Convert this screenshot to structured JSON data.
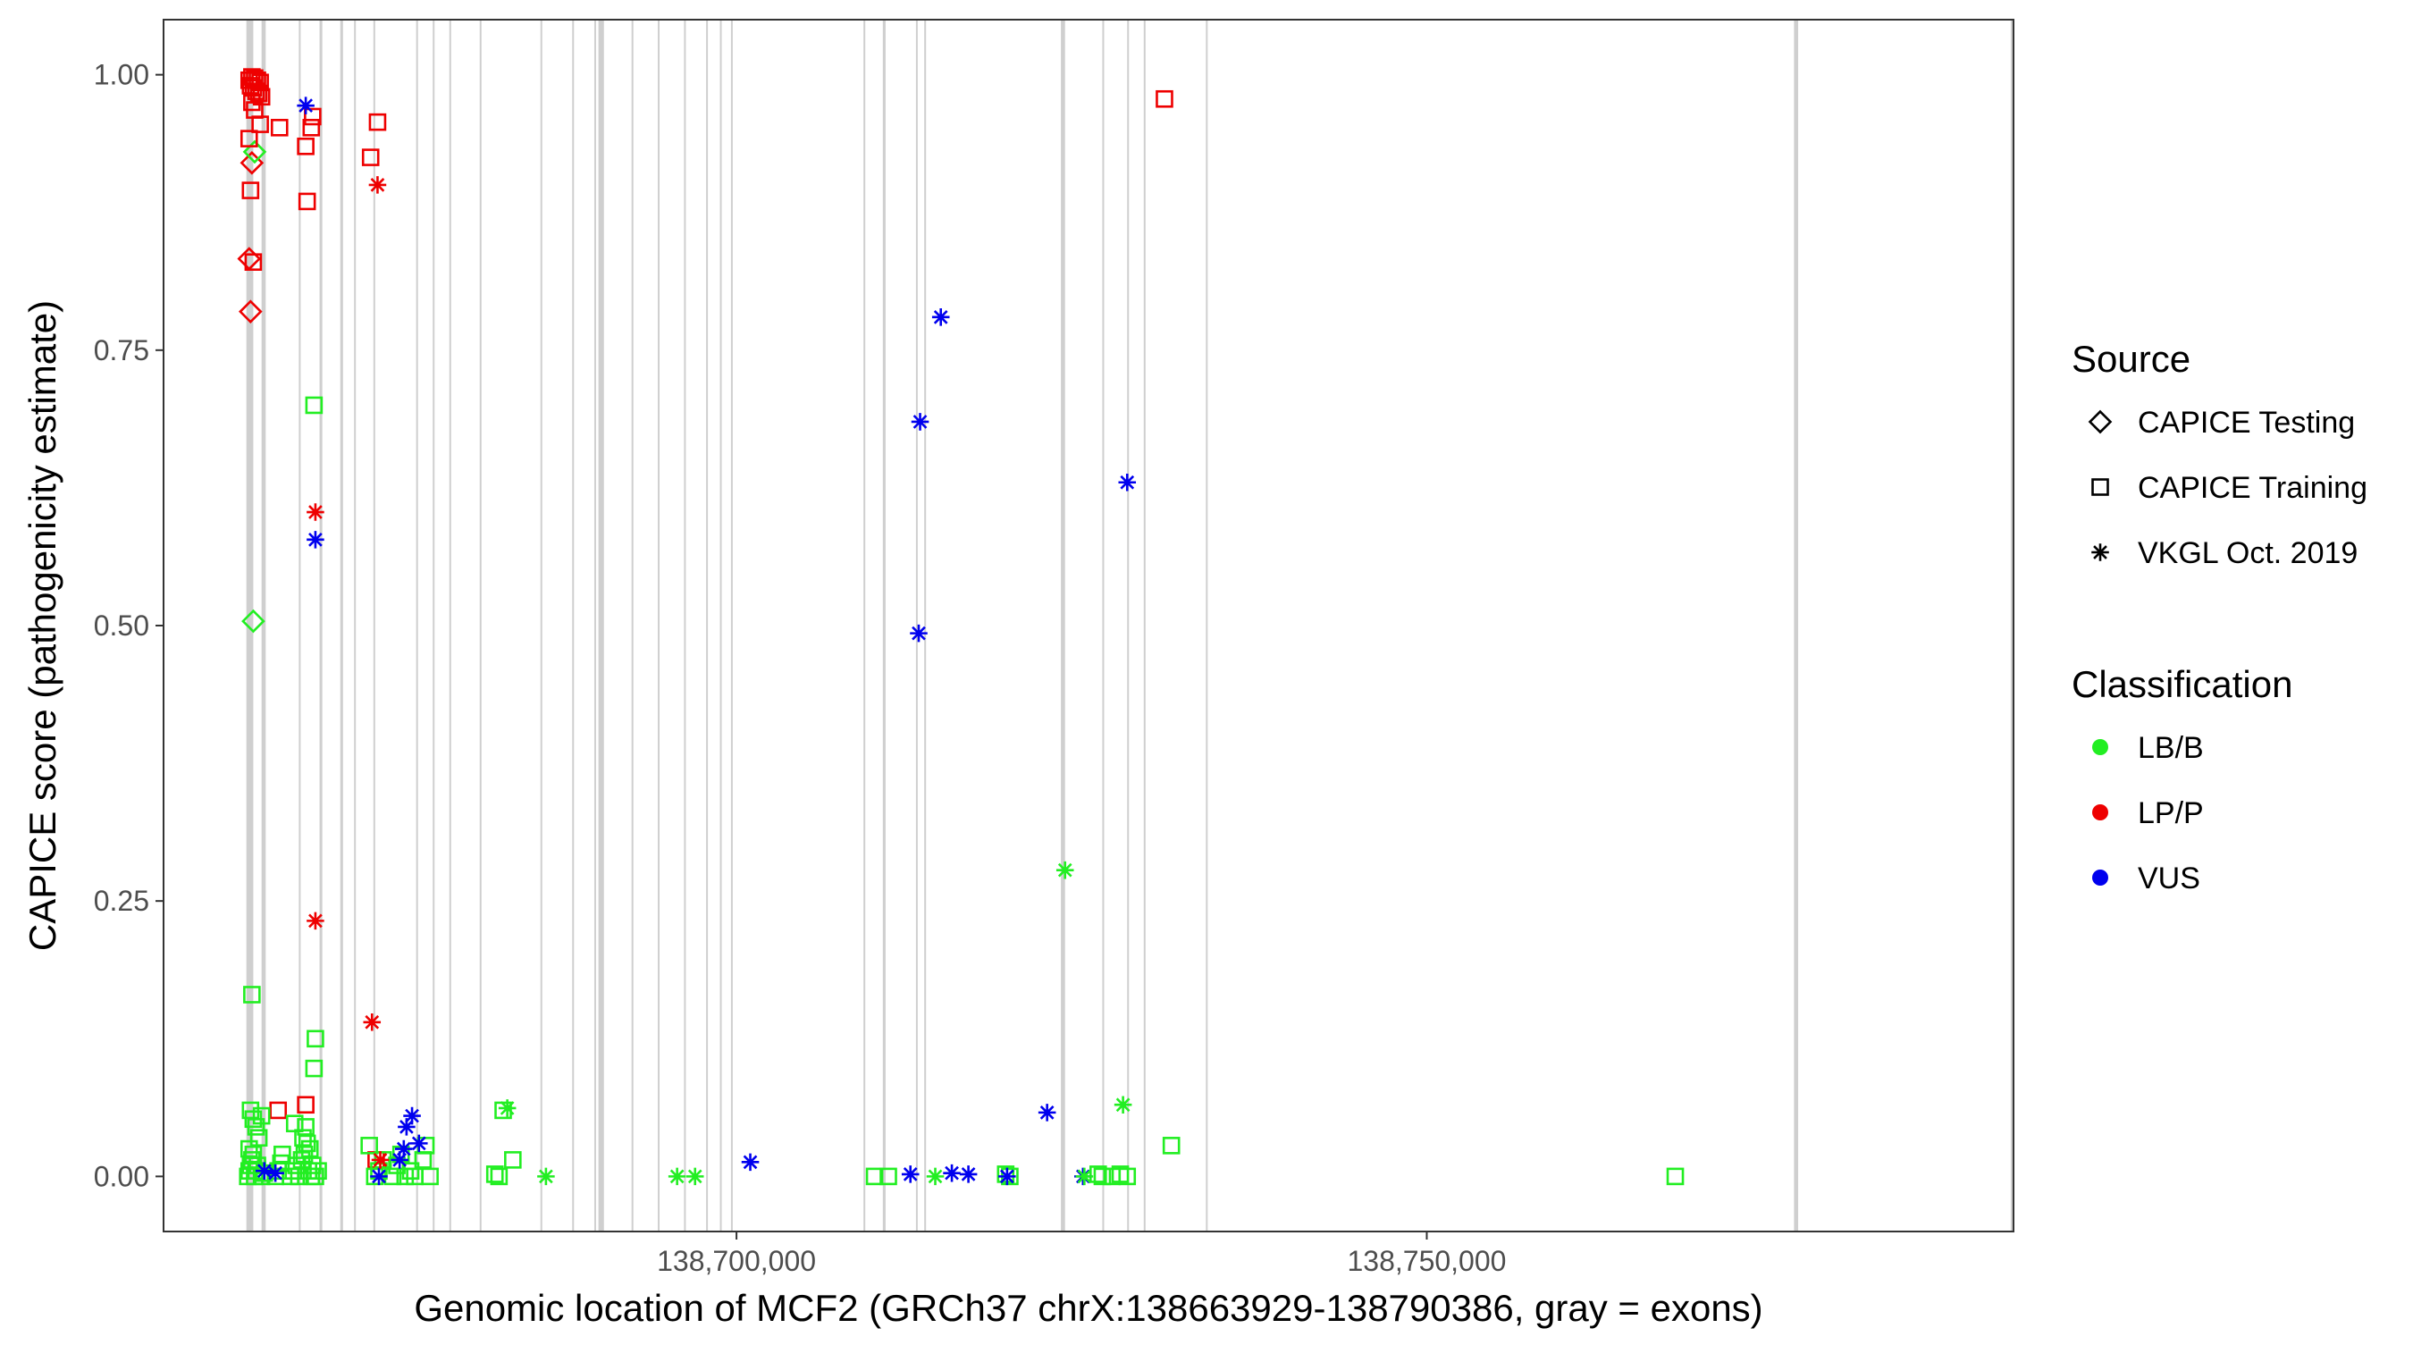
{
  "chart_data": {
    "type": "scatter",
    "title": "",
    "xlabel": "Genomic location of MCF2 (GRCh37 chrX:138663929-138790386, gray = exons)",
    "ylabel": "CAPICE score (pathogenicity estimate)",
    "xlim": [
      138658500,
      138792500
    ],
    "ylim": [
      -0.05,
      1.05
    ],
    "x_ticks": [
      138700000,
      138750000
    ],
    "x_tick_labels": [
      "138,700,000",
      "138,750,000"
    ],
    "y_ticks": [
      0,
      0.25,
      0.5,
      0.75,
      1.0
    ],
    "y_tick_labels": [
      "0.00",
      "0.25",
      "0.50",
      "0.75",
      "1.00"
    ],
    "grid": false,
    "legend_position": "right",
    "exon_lines": [
      [
        138664500,
        138665000
      ],
      [
        138665600,
        138665900
      ],
      [
        138668300,
        138668400
      ],
      [
        138669800,
        138670000
      ],
      [
        138671300,
        138671500
      ],
      [
        138672300,
        138672400
      ],
      [
        138673700,
        138673800
      ],
      [
        138676800,
        138676900
      ],
      [
        138678000,
        138678100
      ],
      [
        138679200,
        138679300
      ],
      [
        138681400,
        138681500
      ],
      [
        138685800,
        138685900
      ],
      [
        138688100,
        138688200
      ],
      [
        138689700,
        138689800
      ],
      [
        138690000,
        138690400
      ],
      [
        138692400,
        138692500
      ],
      [
        138694300,
        138694400
      ],
      [
        138696200,
        138696300
      ],
      [
        138697800,
        138697900
      ],
      [
        138698800,
        138698900
      ],
      [
        138699600,
        138699700
      ],
      [
        138709200,
        138709300
      ],
      [
        138710600,
        138710800
      ],
      [
        138713000,
        138713100
      ],
      [
        138713600,
        138713700
      ],
      [
        138723500,
        138723800
      ],
      [
        138726500,
        138726600
      ],
      [
        138728300,
        138728400
      ],
      [
        138729500,
        138729600
      ],
      [
        138734000,
        138734100
      ],
      [
        138776600,
        138776900
      ],
      [
        138792300,
        138792400
      ]
    ],
    "legends": {
      "source": {
        "title": "Source",
        "items": [
          {
            "label": "CAPICE Testing",
            "shape": "diamond"
          },
          {
            "label": "CAPICE Training",
            "shape": "square"
          },
          {
            "label": "VKGL Oct. 2019",
            "shape": "asterisk"
          }
        ]
      },
      "classification": {
        "title": "Classification",
        "items": [
          {
            "label": "LB/B",
            "color": "#22ee22"
          },
          {
            "label": "LP/P",
            "color": "#ee0000"
          },
          {
            "label": "VUS",
            "color": "#0000ee"
          }
        ]
      }
    },
    "series": [
      {
        "source": "CAPICE Testing",
        "shape": "diamond",
        "classification": "LP/P",
        "color": "#ee0000",
        "points": [
          [
            138664900,
            0.92
          ],
          [
            138664700,
            0.833
          ],
          [
            138664800,
            0.785
          ]
        ]
      },
      {
        "source": "CAPICE Testing",
        "shape": "diamond",
        "classification": "LB/B",
        "color": "#22ee22",
        "points": [
          [
            138665100,
            0.93
          ],
          [
            138665000,
            0.504
          ]
        ]
      },
      {
        "source": "CAPICE Training",
        "shape": "square",
        "classification": "LP/P",
        "color": "#ee0000",
        "points": [
          [
            138664700,
            0.995
          ],
          [
            138664900,
            0.998
          ],
          [
            138665100,
            0.997
          ],
          [
            138665300,
            0.995
          ],
          [
            138665500,
            0.993
          ],
          [
            138664800,
            0.99
          ],
          [
            138665000,
            0.988
          ],
          [
            138665200,
            0.985
          ],
          [
            138665400,
            0.983
          ],
          [
            138665600,
            0.98
          ],
          [
            138664900,
            0.975
          ],
          [
            138665100,
            0.968
          ],
          [
            138665500,
            0.955
          ],
          [
            138666900,
            0.952
          ],
          [
            138664700,
            0.942
          ],
          [
            138664800,
            0.895
          ],
          [
            138665000,
            0.83
          ],
          [
            138668800,
            0.935
          ],
          [
            138669300,
            0.962
          ],
          [
            138669200,
            0.952
          ],
          [
            138668900,
            0.885
          ],
          [
            138668800,
            0.065
          ],
          [
            138666800,
            0.06
          ],
          [
            138673500,
            0.925
          ],
          [
            138674000,
            0.957
          ],
          [
            138673900,
            0.015
          ],
          [
            138731000,
            0.978
          ]
        ]
      },
      {
        "source": "CAPICE Training",
        "shape": "square",
        "classification": "LB/B",
        "color": "#22ee22",
        "points": [
          [
            138664600,
            0.0
          ],
          [
            138664700,
            0.005
          ],
          [
            138664800,
            0.01
          ],
          [
            138664900,
            0.015
          ],
          [
            138665000,
            0.02
          ],
          [
            138665100,
            0.0
          ],
          [
            138665200,
            0.005
          ],
          [
            138665300,
            0.01
          ],
          [
            138665600,
            0.0
          ],
          [
            138665800,
            0.003
          ],
          [
            138664800,
            0.06
          ],
          [
            138665000,
            0.052
          ],
          [
            138665200,
            0.045
          ],
          [
            138665400,
            0.035
          ],
          [
            138664700,
            0.025
          ],
          [
            138665600,
            0.055
          ],
          [
            138664900,
            0.165
          ],
          [
            138666600,
            0.0
          ],
          [
            138666800,
            0.005
          ],
          [
            138667000,
            0.012
          ],
          [
            138667100,
            0.02
          ],
          [
            138667700,
            0.0
          ],
          [
            138667900,
            0.005
          ],
          [
            138668100,
            0.01
          ],
          [
            138668300,
            0.0
          ],
          [
            138668500,
            0.015
          ],
          [
            138668700,
            0.02
          ],
          [
            138668900,
            0.03
          ],
          [
            138669100,
            0.025
          ],
          [
            138669300,
            0.01
          ],
          [
            138669500,
            0.0
          ],
          [
            138669700,
            0.005
          ],
          [
            138668000,
            0.048
          ],
          [
            138668800,
            0.045
          ],
          [
            138668600,
            0.035
          ],
          [
            138669000,
            0.005
          ],
          [
            138669200,
            0.0
          ],
          [
            138669400,
            0.7
          ],
          [
            138669500,
            0.125
          ],
          [
            138669400,
            0.098
          ],
          [
            138673400,
            0.028
          ],
          [
            138673800,
            0.0
          ],
          [
            138674100,
            0.005
          ],
          [
            138674400,
            0.015
          ],
          [
            138675100,
            0.0
          ],
          [
            138675400,
            0.01
          ],
          [
            138675700,
            0.02
          ],
          [
            138676000,
            0.0
          ],
          [
            138676400,
            0.005
          ],
          [
            138676700,
            0.0
          ],
          [
            138677300,
            0.015
          ],
          [
            138677500,
            0.028
          ],
          [
            138677800,
            0.0
          ],
          [
            138682500,
            0.002
          ],
          [
            138682800,
            0.0
          ],
          [
            138683100,
            0.06
          ],
          [
            138683800,
            0.015
          ],
          [
            138710000,
            0.0
          ],
          [
            138711000,
            0.0
          ],
          [
            138719500,
            0.002
          ],
          [
            138719800,
            0.0
          ],
          [
            138726200,
            0.002
          ],
          [
            138726500,
            0.0
          ],
          [
            138727200,
            0.0
          ],
          [
            138727800,
            0.002
          ],
          [
            138728300,
            0.0
          ],
          [
            138731500,
            0.028
          ],
          [
            138768000,
            0.0
          ]
        ]
      },
      {
        "source": "VKGL Oct. 2019",
        "shape": "asterisk",
        "classification": "VUS",
        "color": "#0000ee",
        "points": [
          [
            138668800,
            0.972
          ],
          [
            138669500,
            0.578
          ],
          [
            138665800,
            0.005
          ],
          [
            138666600,
            0.003
          ],
          [
            138674100,
            0.0
          ],
          [
            138675600,
            0.015
          ],
          [
            138675900,
            0.025
          ],
          [
            138676100,
            0.045
          ],
          [
            138676500,
            0.055
          ],
          [
            138677000,
            0.03
          ],
          [
            138701000,
            0.013
          ],
          [
            138713300,
            0.685
          ],
          [
            138713200,
            0.493
          ],
          [
            138714800,
            0.78
          ],
          [
            138712600,
            0.002
          ],
          [
            138715600,
            0.003
          ],
          [
            138716800,
            0.002
          ],
          [
            138719600,
            0.0
          ],
          [
            138722500,
            0.058
          ],
          [
            138725100,
            0.0
          ],
          [
            138728300,
            0.63
          ]
        ]
      },
      {
        "source": "VKGL Oct. 2019",
        "shape": "asterisk",
        "classification": "LP/P",
        "color": "#ee0000",
        "points": [
          [
            138674000,
            0.9
          ],
          [
            138669500,
            0.603
          ],
          [
            138669500,
            0.232
          ],
          [
            138673600,
            0.14
          ],
          [
            138674200,
            0.015
          ]
        ]
      },
      {
        "source": "VKGL Oct. 2019",
        "shape": "asterisk",
        "classification": "LB/B",
        "color": "#22ee22",
        "points": [
          [
            138683400,
            0.062
          ],
          [
            138686200,
            0.0
          ],
          [
            138695700,
            0.0
          ],
          [
            138697000,
            0.0
          ],
          [
            138723800,
            0.278
          ],
          [
            138728000,
            0.065
          ],
          [
            138725200,
            0.0
          ],
          [
            138714400,
            0.0
          ]
        ]
      }
    ]
  }
}
